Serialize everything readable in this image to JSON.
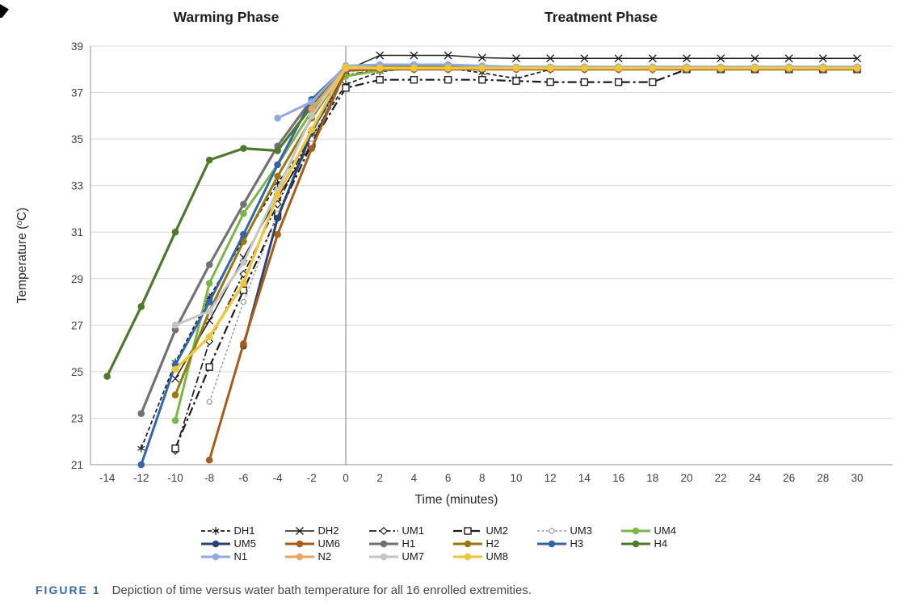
{
  "figure": {
    "caption_label": "FIGURE 1",
    "caption_text": "Depiction of time versus water bath temperature for all 16 enrolled extremities."
  },
  "legend": {
    "rows": [
      [
        "DH1",
        "DH2",
        "UM1",
        "UM2",
        "UM3",
        "UM4"
      ],
      [
        "UM5",
        "UM6",
        "H1",
        "H2",
        "H3",
        "H4"
      ],
      [
        "N1",
        "N2",
        "UM7",
        "UM8"
      ]
    ]
  },
  "chart_data": {
    "type": "line",
    "phase_labels": [
      {
        "label": "Warming Phase",
        "x_range": [
          -14,
          0
        ]
      },
      {
        "label": "Treatment Phase",
        "x_range": [
          0,
          30
        ]
      }
    ],
    "xlabel": "Time (minutes)",
    "ylabel_prefix": "Temperature (",
    "ylabel_sup": "o",
    "ylabel_suffix": "C)",
    "xlim": [
      -14,
      30
    ],
    "ylim": [
      21,
      39
    ],
    "x_ticks": [
      -14,
      -12,
      -10,
      -8,
      -6,
      -4,
      -2,
      0,
      2,
      4,
      6,
      8,
      10,
      12,
      14,
      16,
      18,
      20,
      22,
      24,
      26,
      28,
      30
    ],
    "y_ticks": [
      21,
      23,
      25,
      27,
      29,
      31,
      33,
      35,
      37,
      39
    ],
    "divider_x": 0,
    "grid": "horizontal",
    "grid_color": "#d9d9d9",
    "axis_color": "#a6a6a6",
    "divider_color": "#7f7f7f",
    "series": [
      {
        "name": "DH1",
        "color": "#1c1c1c",
        "line": "dash",
        "width": 1.7,
        "marker": "star",
        "points": [
          [
            -12,
            21.7
          ],
          [
            -10,
            25.4
          ],
          [
            -8,
            28.2
          ],
          [
            -6,
            30.7
          ],
          [
            -4,
            33.1
          ],
          [
            -2,
            35.1
          ],
          [
            0,
            37.35
          ],
          [
            2,
            37.9
          ],
          [
            4,
            38.05
          ],
          [
            6,
            38.05
          ],
          [
            8,
            37.85
          ],
          [
            10,
            37.6
          ],
          [
            12,
            38
          ],
          [
            14,
            38.05
          ],
          [
            16,
            38.05
          ],
          [
            18,
            38.05
          ],
          [
            20,
            38.05
          ],
          [
            22,
            38.05
          ],
          [
            24,
            38.05
          ],
          [
            26,
            38.05
          ],
          [
            28,
            38.05
          ],
          [
            30,
            38.05
          ]
        ]
      },
      {
        "name": "DH2",
        "color": "#1c1c1c",
        "line": "solid",
        "width": 1.5,
        "marker": "x",
        "points": [
          [
            -10,
            24.7
          ],
          [
            -8,
            27.2
          ],
          [
            -6,
            29.9
          ],
          [
            -4,
            32.5
          ],
          [
            -2,
            34.8
          ],
          [
            0,
            37.95
          ],
          [
            2,
            38.6
          ],
          [
            4,
            38.6
          ],
          [
            6,
            38.6
          ],
          [
            8,
            38.5
          ]
        ],
        "flat": {
          "from": 10,
          "to": 30,
          "value": 38.47
        }
      },
      {
        "name": "UM1",
        "color": "#1c1c1c",
        "line": "dashdot",
        "width": 1.7,
        "marker": "diamond",
        "points": [
          [
            -10,
            21.6
          ],
          [
            -8,
            26.3
          ],
          [
            -6,
            29.2
          ],
          [
            -4,
            32.2
          ],
          [
            -2,
            35.3
          ],
          [
            0,
            37.75
          ]
        ],
        "flat": {
          "from": 2,
          "to": 30,
          "value": 38
        }
      },
      {
        "name": "UM2",
        "color": "#1c1c1c",
        "line": "longdashdot",
        "width": 2.2,
        "marker": "square",
        "points": [
          [
            -10,
            21.7
          ],
          [
            -8,
            25.2
          ],
          [
            -6,
            28.5
          ],
          [
            -4,
            31.7
          ],
          [
            -2,
            34.8
          ],
          [
            0,
            37.2
          ],
          [
            2,
            37.55
          ],
          [
            4,
            37.55
          ],
          [
            6,
            37.55
          ],
          [
            8,
            37.55
          ],
          [
            10,
            37.5
          ],
          [
            12,
            37.45
          ],
          [
            14,
            37.45
          ],
          [
            16,
            37.45
          ],
          [
            18,
            37.45
          ],
          [
            20,
            38
          ],
          [
            22,
            38
          ],
          [
            24,
            38
          ],
          [
            26,
            38
          ],
          [
            28,
            38
          ],
          [
            30,
            38
          ]
        ]
      },
      {
        "name": "UM3",
        "color": "#999999",
        "line": "dot",
        "width": 1.4,
        "marker": "circle-open",
        "points": [
          [
            -8,
            23.7
          ],
          [
            -6,
            28
          ],
          [
            -4,
            31.8
          ],
          [
            -2,
            35
          ],
          [
            0,
            37.9
          ]
        ],
        "flat": {
          "from": 2,
          "to": 30,
          "value": 38
        }
      },
      {
        "name": "UM4",
        "color": "#7ab648",
        "line": "solid",
        "width": 3,
        "marker": "dot",
        "points": [
          [
            -10,
            22.9
          ],
          [
            -8,
            28.8
          ],
          [
            -6,
            31.8
          ],
          [
            -4,
            33.9
          ],
          [
            -2,
            36.2
          ],
          [
            0,
            37.7
          ],
          [
            2,
            37.95
          ]
        ],
        "flat": {
          "from": 4,
          "to": 30,
          "value": 38.05
        }
      },
      {
        "name": "UM5",
        "color": "#2a4375",
        "line": "solid",
        "width": 3,
        "marker": "dot",
        "points": [
          [
            -6,
            26.1
          ],
          [
            -4,
            31.6
          ],
          [
            -2,
            35.3
          ],
          [
            0,
            38
          ]
        ],
        "flat": {
          "from": 2,
          "to": 30,
          "value": 38.05
        }
      },
      {
        "name": "UM6",
        "color": "#a65c1a",
        "line": "solid",
        "width": 3,
        "marker": "dot",
        "points": [
          [
            -8,
            21.2
          ],
          [
            -6,
            26.2
          ],
          [
            -4,
            30.9
          ],
          [
            -2,
            34.6
          ],
          [
            0,
            37.95
          ]
        ],
        "flat": {
          "from": 2,
          "to": 30,
          "value": 38
        }
      },
      {
        "name": "H1",
        "color": "#767171",
        "line": "solid",
        "width": 3.2,
        "marker": "dot",
        "points": [
          [
            -12,
            23.2
          ],
          [
            -10,
            26.8
          ],
          [
            -8,
            29.6
          ],
          [
            -6,
            32.2
          ],
          [
            -4,
            34.7
          ],
          [
            -2,
            36.7
          ],
          [
            0,
            38.1
          ]
        ],
        "flat": {
          "from": 2,
          "to": 30,
          "value": 38.05
        }
      },
      {
        "name": "H2",
        "color": "#97790f",
        "line": "solid",
        "width": 3,
        "marker": "dot",
        "points": [
          [
            -10,
            24
          ],
          [
            -8,
            27.6
          ],
          [
            -6,
            30.6
          ],
          [
            -4,
            33.4
          ],
          [
            -2,
            35.9
          ],
          [
            0,
            38.05
          ]
        ],
        "flat": {
          "from": 2,
          "to": 30,
          "value": 38.1
        }
      },
      {
        "name": "H3",
        "color": "#3465a8",
        "line": "solid",
        "width": 3,
        "marker": "dot",
        "points": [
          [
            -12,
            21
          ],
          [
            -10,
            25.3
          ],
          [
            -8,
            28
          ],
          [
            -6,
            30.9
          ],
          [
            -4,
            33.9
          ],
          [
            -2,
            36.7
          ],
          [
            0,
            38.1
          ]
        ],
        "flat": {
          "from": 2,
          "to": 30,
          "value": 38.05
        }
      },
      {
        "name": "H4",
        "color": "#4e792c",
        "line": "solid",
        "width": 3.2,
        "marker": "dot",
        "points": [
          [
            -14,
            24.8
          ],
          [
            -12,
            27.8
          ],
          [
            -10,
            31
          ],
          [
            -8,
            34.1
          ],
          [
            -6,
            34.6
          ],
          [
            -4,
            34.5
          ],
          [
            -2,
            36.4
          ],
          [
            0,
            38.1
          ]
        ],
        "flat": {
          "from": 2,
          "to": 30,
          "value": 38.05
        }
      },
      {
        "name": "N1",
        "color": "#8faadc",
        "line": "solid",
        "width": 3,
        "marker": "dot",
        "points": [
          [
            -4,
            35.9
          ],
          [
            -2,
            36.6
          ],
          [
            0,
            38.15
          ],
          [
            2,
            38.2
          ],
          [
            4,
            38.2
          ],
          [
            6,
            38.2
          ],
          [
            8,
            38.15
          ]
        ],
        "flat": {
          "from": 10,
          "to": 30,
          "value": 38.1
        }
      },
      {
        "name": "N2",
        "color": "#eba45f",
        "line": "solid",
        "width": 3,
        "marker": "dot",
        "points": [
          [
            -2,
            36.3
          ],
          [
            0,
            38.05
          ]
        ],
        "flat": {
          "from": 2,
          "to": 30,
          "value": 38.05
        }
      },
      {
        "name": "UM7",
        "color": "#c5c5c5",
        "line": "solid",
        "width": 3,
        "marker": "dot",
        "points": [
          [
            -10,
            27
          ],
          [
            -8,
            27.6
          ],
          [
            -6,
            29.7
          ],
          [
            -4,
            32.8
          ],
          [
            -2,
            36
          ],
          [
            0,
            38.05
          ]
        ],
        "flat": {
          "from": 2,
          "to": 30,
          "value": 38.05
        }
      },
      {
        "name": "UM8",
        "color": "#edc63b",
        "line": "solid",
        "width": 3.4,
        "marker": "dot",
        "points": [
          [
            -10,
            25.1
          ],
          [
            -8,
            26.5
          ],
          [
            -6,
            28.8
          ],
          [
            -4,
            32.6
          ],
          [
            -2,
            35.4
          ],
          [
            0,
            38.1
          ]
        ],
        "flat": {
          "from": 2,
          "to": 30,
          "value": 38.05
        }
      }
    ]
  }
}
